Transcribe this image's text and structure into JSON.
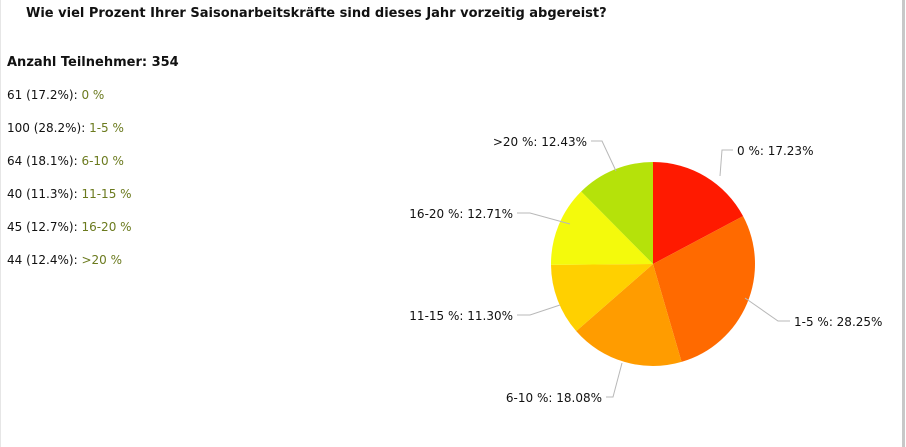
{
  "survey": {
    "question": "Wie viel Prozent Ihrer Saisonarbeitskräfte sind dieses Jahr vorzeitig abgereist?",
    "participants_label": "Anzahl Teilnehmer: 354",
    "results": [
      {
        "count_text": "61 (17.2%):",
        "answer": "0 %"
      },
      {
        "count_text": "100 (28.2%):",
        "answer": "1-5 %"
      },
      {
        "count_text": "64 (18.1%):",
        "answer": "6-10 %"
      },
      {
        "count_text": "40 (11.3%):",
        "answer": "11-15 %"
      },
      {
        "count_text": "45 (12.7%):",
        "answer": "16-20 %"
      },
      {
        "count_text": "44 (12.4%):",
        "answer": ">20 %"
      }
    ]
  },
  "chart_data": {
    "type": "pie",
    "categories": [
      "0 %",
      "1-5 %",
      "6-10 %",
      "11-15 %",
      "16-20 %",
      ">20 %"
    ],
    "values": [
      17.23,
      28.25,
      18.08,
      11.3,
      12.71,
      12.43
    ],
    "counts": [
      61,
      100,
      64,
      40,
      45,
      44
    ],
    "labels": [
      "0 %: 17.23%",
      "1-5 %: 28.25%",
      "6-10 %: 18.08%",
      "11-15 %: 11.30%",
      "16-20 %: 12.71%",
      ">20 %: 12.43%"
    ],
    "colors": [
      "#ff1a00",
      "#ff6a00",
      "#ff9c00",
      "#ffd000",
      "#f4fa0c",
      "#b5e20a"
    ],
    "start": "12 o'clock",
    "direction": "clockwise"
  }
}
